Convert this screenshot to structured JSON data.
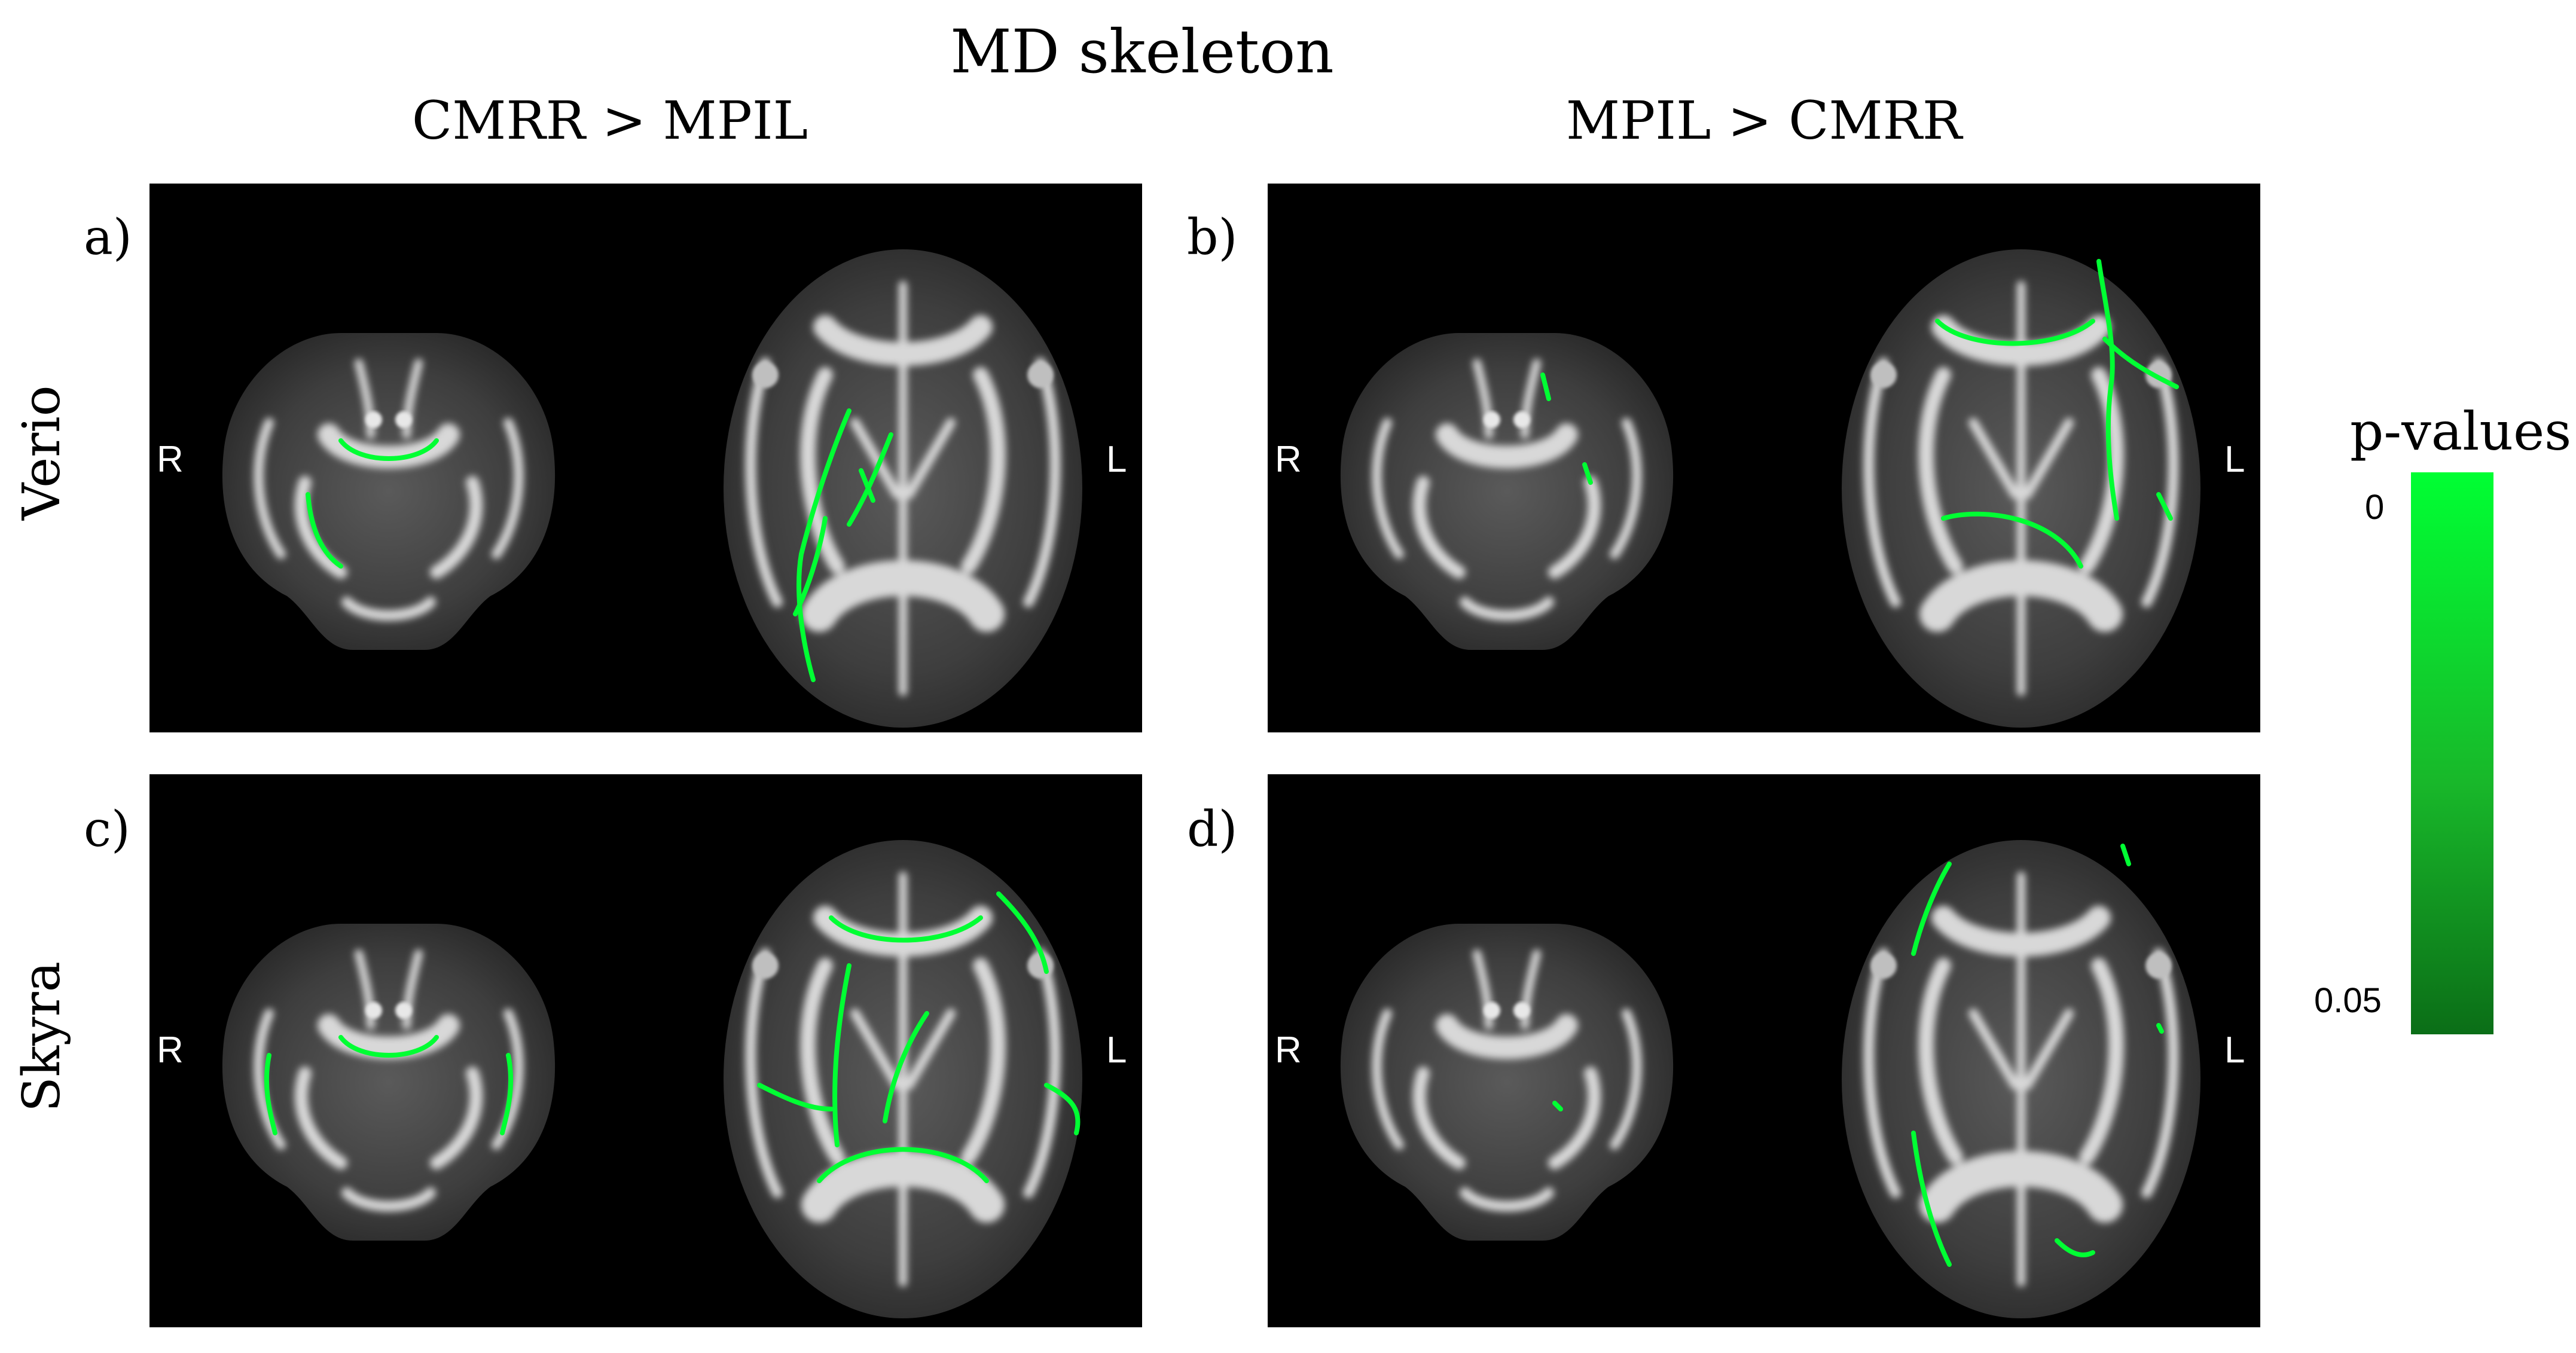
{
  "figure": {
    "title": "MD skeleton",
    "columns": [
      "CMRR > MPIL",
      "MPIL > CMRR"
    ],
    "rows": [
      "Verio",
      "Skyra"
    ],
    "panels": [
      {
        "letter": "a)",
        "left_side": "R",
        "right_side": "L"
      },
      {
        "letter": "b)",
        "left_side": "R",
        "right_side": "L"
      },
      {
        "letter": "c)",
        "left_side": "R",
        "right_side": "L"
      },
      {
        "letter": "d)",
        "left_side": "R",
        "right_side": "L"
      }
    ],
    "colorbar": {
      "title": "p-values",
      "max_label": "0",
      "min_label": "0.05",
      "color_top": "#00ff33",
      "color_bottom": "#0b6e17"
    }
  }
}
